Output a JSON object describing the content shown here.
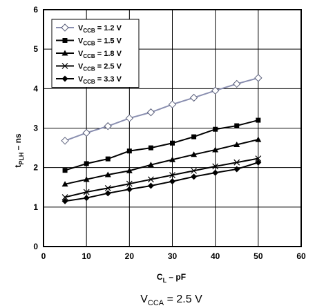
{
  "chart_data": {
    "type": "line",
    "xlabel": {
      "main": "C",
      "sub": "L",
      "rest": " – pF"
    },
    "ylabel": {
      "main": "t",
      "sub": "PLH",
      "rest": " – ns"
    },
    "xlim": [
      0,
      60
    ],
    "ylim": [
      0,
      6
    ],
    "x_ticks": [
      "0",
      "10",
      "20",
      "30",
      "40",
      "50",
      "60"
    ],
    "y_ticks": [
      "0",
      "1",
      "2",
      "3",
      "4",
      "5",
      "6"
    ],
    "grid": true,
    "legend_position": "top-left",
    "x": [
      5,
      10,
      15,
      20,
      25,
      30,
      35,
      40,
      45,
      50
    ],
    "series": [
      {
        "legend_main": "V",
        "legend_sub": "CCB",
        "legend_rest": " = 1.2 V",
        "marker": "diamond-open",
        "color": "#8a8fb0",
        "values": [
          2.68,
          2.88,
          3.05,
          3.25,
          3.4,
          3.6,
          3.77,
          3.95,
          4.12,
          4.27
        ]
      },
      {
        "legend_main": "V",
        "legend_sub": "CCB",
        "legend_rest": " = 1.5 V",
        "marker": "square",
        "color": "#000000",
        "values": [
          1.93,
          2.1,
          2.22,
          2.42,
          2.5,
          2.62,
          2.78,
          2.97,
          3.06,
          3.2
        ]
      },
      {
        "legend_main": "V",
        "legend_sub": "CCB",
        "legend_rest": " = 1.8 V",
        "marker": "triangle",
        "color": "#000000",
        "values": [
          1.58,
          1.7,
          1.82,
          1.92,
          2.07,
          2.2,
          2.33,
          2.45,
          2.58,
          2.71
        ]
      },
      {
        "legend_main": "V",
        "legend_sub": "CCB",
        "legend_rest": " = 2.5 V",
        "marker": "x",
        "color": "#000000",
        "values": [
          1.25,
          1.38,
          1.48,
          1.59,
          1.7,
          1.81,
          1.92,
          2.03,
          2.13,
          2.23
        ]
      },
      {
        "legend_main": "V",
        "legend_sub": "CCB",
        "legend_rest": " = 3.3 V",
        "marker": "diamond",
        "color": "#000000",
        "values": [
          1.15,
          1.23,
          1.35,
          1.45,
          1.54,
          1.65,
          1.77,
          1.87,
          1.96,
          2.13
        ]
      }
    ]
  },
  "caption": {
    "main": "V",
    "sub": "CCA",
    "rest": " = 2.5 V"
  }
}
